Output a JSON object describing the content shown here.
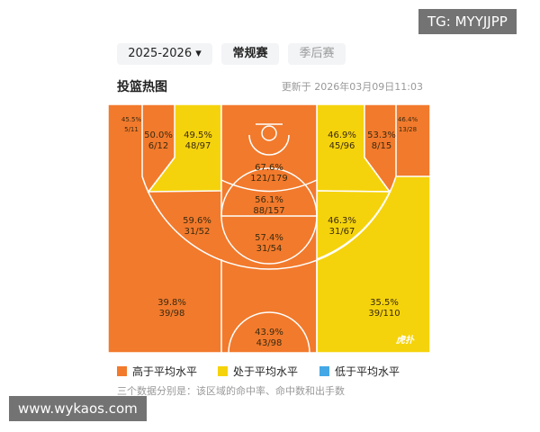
{
  "watermark_top": "TG: MYYJJPP",
  "watermark_bottom": "www.wykaos.com",
  "header": {
    "season": "2025-2026",
    "tabs": [
      "常规赛",
      "季后赛"
    ],
    "title": "投篮热图",
    "updated": "更新于 2026年03月09日11:03"
  },
  "court": {
    "logo": "虎扑",
    "zones": [
      {
        "pct": "45.5%",
        "counts": "5/11"
      },
      {
        "pct": "50.0%",
        "counts": "6/12"
      },
      {
        "pct": "49.5%",
        "counts": "48/97"
      },
      {
        "pct": "67.6%",
        "counts": "121/179"
      },
      {
        "pct": "46.9%",
        "counts": "45/96"
      },
      {
        "pct": "53.3%",
        "counts": "8/15"
      },
      {
        "pct": "46.4%",
        "counts": "13/28"
      },
      {
        "pct": "56.1%",
        "counts": "88/157"
      },
      {
        "pct": "59.6%",
        "counts": "31/52"
      },
      {
        "pct": "46.3%",
        "counts": "31/67"
      },
      {
        "pct": "57.4%",
        "counts": "31/54"
      },
      {
        "pct": "39.8%",
        "counts": "39/98"
      },
      {
        "pct": "35.5%",
        "counts": "39/110"
      },
      {
        "pct": "43.9%",
        "counts": "43/98"
      }
    ]
  },
  "legend": [
    {
      "label": "高于平均水平",
      "color": "#f27a2c"
    },
    {
      "label": "处于平均水平",
      "color": "#f5d30c"
    },
    {
      "label": "低于平均水平",
      "color": "#45a8e6"
    }
  ],
  "note": "三个数据分别是：该区域的命中率、命中数和出手数"
}
